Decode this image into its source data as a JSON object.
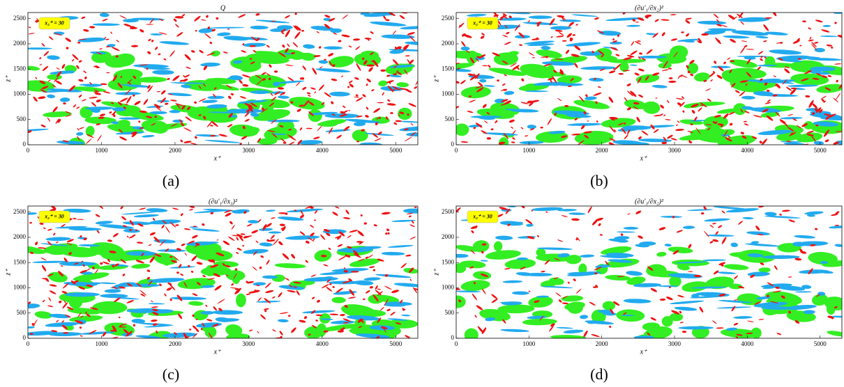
{
  "panels": [
    {
      "title": "Q",
      "caption": "(a)",
      "badge": "x₂⁺ = 30",
      "x_label": "x⁺",
      "y_label": "z⁺",
      "xlim": [
        0,
        5300
      ],
      "ylim": [
        0,
        2620
      ],
      "xticks": [
        0,
        1000,
        2000,
        3000,
        4000,
        5000
      ],
      "yticks": [
        0,
        500,
        1000,
        1500,
        2000,
        2500
      ]
    },
    {
      "title": "(∂u′₁/∂x₂)²",
      "caption": "(b)",
      "badge": "x₂⁺ = 30",
      "x_label": "x⁺",
      "y_label": "z⁺",
      "xlim": [
        0,
        5300
      ],
      "ylim": [
        0,
        2620
      ],
      "xticks": [
        0,
        1000,
        2000,
        3000,
        4000,
        5000
      ],
      "yticks": [
        0,
        500,
        1000,
        1500,
        2000,
        2500
      ]
    },
    {
      "title": "(∂u′₁/∂x₃)²",
      "caption": "(c)",
      "badge": "x₂⁺ = 30",
      "x_label": "x⁺",
      "y_label": "z⁺",
      "xlim": [
        0,
        5300
      ],
      "ylim": [
        0,
        2620
      ],
      "xticks": [
        0,
        1000,
        2000,
        3000,
        4000,
        5000
      ],
      "yticks": [
        0,
        500,
        1000,
        1500,
        2000,
        2500
      ]
    },
    {
      "title": "(∂u′₃/∂x₂)²",
      "caption": "(d)",
      "badge": "x₂⁺ = 30",
      "x_label": "x⁺",
      "y_label": "z⁺",
      "xlim": [
        0,
        5300
      ],
      "ylim": [
        0,
        2620
      ],
      "xticks": [
        0,
        1000,
        2000,
        3000,
        4000,
        5000
      ],
      "yticks": [
        0,
        500,
        1000,
        1500,
        2000,
        2500
      ]
    }
  ]
}
